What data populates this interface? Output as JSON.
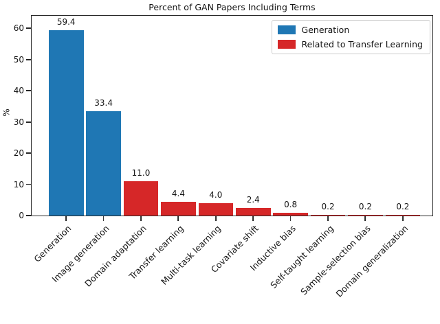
{
  "chart_data": {
    "type": "bar",
    "title": "Percent of GAN Papers Including Terms",
    "xlabel": "",
    "ylabel": "%",
    "ylim": [
      0,
      64
    ],
    "yticks": [
      0,
      10,
      20,
      30,
      40,
      50,
      60
    ],
    "grid": false,
    "legend_position": "upper right",
    "categories": [
      "Generation",
      "Image generation",
      "Domain adaptation",
      "Transfer learning",
      "Multi-task learning",
      "Covariate shift",
      "Inductive bias",
      "Self-taught learning",
      "Sample-selection bias",
      "Domain generalization"
    ],
    "values": [
      59.4,
      33.4,
      11.0,
      4.4,
      4.0,
      2.4,
      0.8,
      0.2,
      0.2,
      0.2
    ],
    "value_labels": [
      "59.4",
      "33.4",
      "11.0",
      "4.4",
      "4.0",
      "2.4",
      "0.8",
      "0.2",
      "0.2",
      "0.2"
    ],
    "series": [
      {
        "name": "Generation",
        "color": "#1f77b4"
      },
      {
        "name": "Related to Transfer Learning",
        "color": "#d62728"
      }
    ],
    "bar_series": [
      0,
      0,
      1,
      1,
      1,
      1,
      1,
      1,
      1,
      1
    ]
  }
}
